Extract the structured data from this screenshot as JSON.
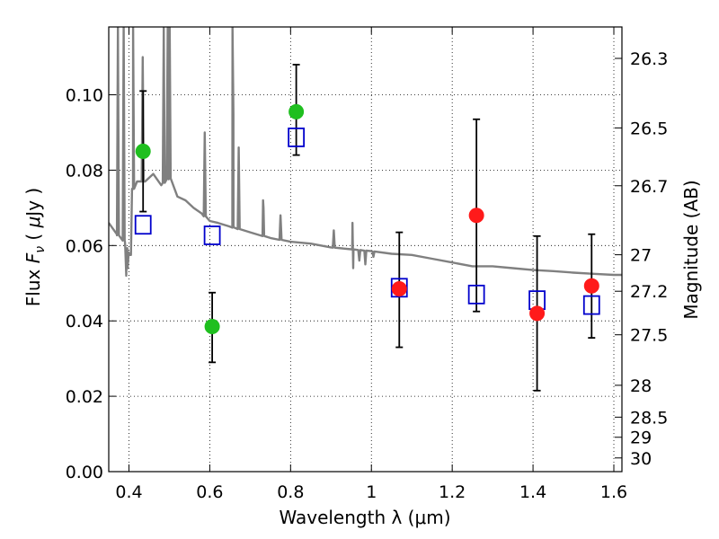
{
  "chart_data": {
    "type": "scatter",
    "xlabel": "Wavelength  λ (μm)",
    "ylabel": "Flux  F_ν  ( μJy )",
    "ylabel_parts": {
      "pre": "Flux  ",
      "sym": "F",
      "sub": "ν",
      "post": "  (  ",
      "mu": "μ",
      "unit": "Jy )"
    },
    "y2label": "Magnitude (AB)",
    "xlim": [
      0.35,
      1.62
    ],
    "ylim": [
      0.0,
      0.118
    ],
    "grid": true,
    "x_ticks": [
      {
        "value": 0.4,
        "label": "0.4"
      },
      {
        "value": 0.6,
        "label": "0.6"
      },
      {
        "value": 0.8,
        "label": "0.8"
      },
      {
        "value": 1.0,
        "label": "1"
      },
      {
        "value": 1.2,
        "label": "1.2"
      },
      {
        "value": 1.4,
        "label": "1.4"
      },
      {
        "value": 1.6,
        "label": "1.6"
      }
    ],
    "y_ticks": [
      {
        "value": 0.0,
        "label": "0.00"
      },
      {
        "value": 0.02,
        "label": "0.02"
      },
      {
        "value": 0.04,
        "label": "0.04"
      },
      {
        "value": 0.06,
        "label": "0.06"
      },
      {
        "value": 0.08,
        "label": "0.08"
      },
      {
        "value": 0.1,
        "label": "0.10"
      }
    ],
    "mag_ticks": [
      {
        "mag": 26.3,
        "label": "26.3"
      },
      {
        "mag": 26.5,
        "label": "26.5"
      },
      {
        "mag": 26.7,
        "label": "26.7"
      },
      {
        "mag": 27.0,
        "label": "27"
      },
      {
        "mag": 27.2,
        "label": "27.2"
      },
      {
        "mag": 27.5,
        "label": "27.5"
      },
      {
        "mag": 28.0,
        "label": "28"
      },
      {
        "mag": 28.5,
        "label": "28.5"
      },
      {
        "mag": 29.0,
        "label": "29"
      },
      {
        "mag": 30.0,
        "label": "30"
      }
    ],
    "colors": {
      "observed_optical": "#1fbf1f",
      "observed_nir": "#ff1a1a",
      "model": "#0000cc",
      "spectrum": "#808080",
      "errorbar": "#000000"
    },
    "observed": [
      {
        "x": 0.435,
        "y": 0.085,
        "yerr_low": 0.069,
        "yerr_high": 0.101,
        "group": "observed_optical"
      },
      {
        "x": 0.606,
        "y": 0.0385,
        "yerr_low": 0.029,
        "yerr_high": 0.0475,
        "group": "observed_optical"
      },
      {
        "x": 0.814,
        "y": 0.0955,
        "yerr_low": 0.084,
        "yerr_high": 0.108,
        "group": "observed_optical"
      },
      {
        "x": 1.069,
        "y": 0.0485,
        "yerr_low": 0.033,
        "yerr_high": 0.0635,
        "group": "observed_nir"
      },
      {
        "x": 1.26,
        "y": 0.068,
        "yerr_low": 0.0425,
        "yerr_high": 0.0935,
        "group": "observed_nir"
      },
      {
        "x": 1.41,
        "y": 0.042,
        "yerr_low": 0.0215,
        "yerr_high": 0.0625,
        "group": "observed_nir"
      },
      {
        "x": 1.545,
        "y": 0.0493,
        "yerr_low": 0.0355,
        "yerr_high": 0.063,
        "group": "observed_nir"
      }
    ],
    "model_photometry": [
      {
        "x": 0.435,
        "y": 0.0655
      },
      {
        "x": 0.606,
        "y": 0.0627
      },
      {
        "x": 0.814,
        "y": 0.0887
      },
      {
        "x": 1.069,
        "y": 0.0488
      },
      {
        "x": 1.26,
        "y": 0.047
      },
      {
        "x": 1.41,
        "y": 0.0455
      },
      {
        "x": 1.545,
        "y": 0.0442
      }
    ],
    "spectrum": {
      "continuum": [
        [
          0.35,
          0.066
        ],
        [
          0.37,
          0.063
        ],
        [
          0.39,
          0.061
        ],
        [
          0.395,
          0.0585
        ],
        [
          0.4,
          0.0575
        ],
        [
          0.405,
          0.0575
        ],
        [
          0.41,
          0.075
        ],
        [
          0.42,
          0.077
        ],
        [
          0.44,
          0.077
        ],
        [
          0.46,
          0.079
        ],
        [
          0.48,
          0.076
        ],
        [
          0.5,
          0.078
        ],
        [
          0.52,
          0.073
        ],
        [
          0.54,
          0.072
        ],
        [
          0.56,
          0.07
        ],
        [
          0.58,
          0.0685
        ],
        [
          0.6,
          0.0665
        ],
        [
          0.62,
          0.066
        ],
        [
          0.65,
          0.065
        ],
        [
          0.7,
          0.0635
        ],
        [
          0.75,
          0.062
        ],
        [
          0.8,
          0.061
        ],
        [
          0.85,
          0.0605
        ],
        [
          0.9,
          0.0595
        ],
        [
          0.95,
          0.059
        ],
        [
          1.0,
          0.0585
        ],
        [
          1.05,
          0.0578
        ],
        [
          1.1,
          0.0575
        ],
        [
          1.15,
          0.0565
        ],
        [
          1.2,
          0.0555
        ],
        [
          1.25,
          0.0545
        ],
        [
          1.3,
          0.0545
        ],
        [
          1.35,
          0.054
        ],
        [
          1.4,
          0.0535
        ],
        [
          1.45,
          0.0532
        ],
        [
          1.5,
          0.0528
        ],
        [
          1.55,
          0.0525
        ],
        [
          1.6,
          0.0522
        ],
        [
          1.62,
          0.0522
        ]
      ],
      "emission_lines": [
        [
          0.3727,
          0.118
        ],
        [
          0.3869,
          0.118
        ],
        [
          0.4102,
          0.118
        ],
        [
          0.4341,
          0.11
        ],
        [
          0.4861,
          0.118
        ],
        [
          0.4959,
          0.118
        ],
        [
          0.5007,
          0.118
        ],
        [
          0.5876,
          0.09
        ],
        [
          0.6563,
          0.118
        ],
        [
          0.6584,
          0.095
        ],
        [
          0.6716,
          0.086
        ],
        [
          0.732,
          0.072
        ],
        [
          0.733,
          0.07
        ],
        [
          0.7751,
          0.068
        ],
        [
          0.9069,
          0.064
        ],
        [
          0.9532,
          0.066
        ]
      ],
      "absorption_dips": [
        [
          0.3934,
          0.052
        ],
        [
          0.3968,
          0.054
        ],
        [
          0.955,
          0.054
        ],
        [
          0.97,
          0.056
        ],
        [
          0.985,
          0.055
        ],
        [
          1.005,
          0.057
        ]
      ]
    }
  }
}
